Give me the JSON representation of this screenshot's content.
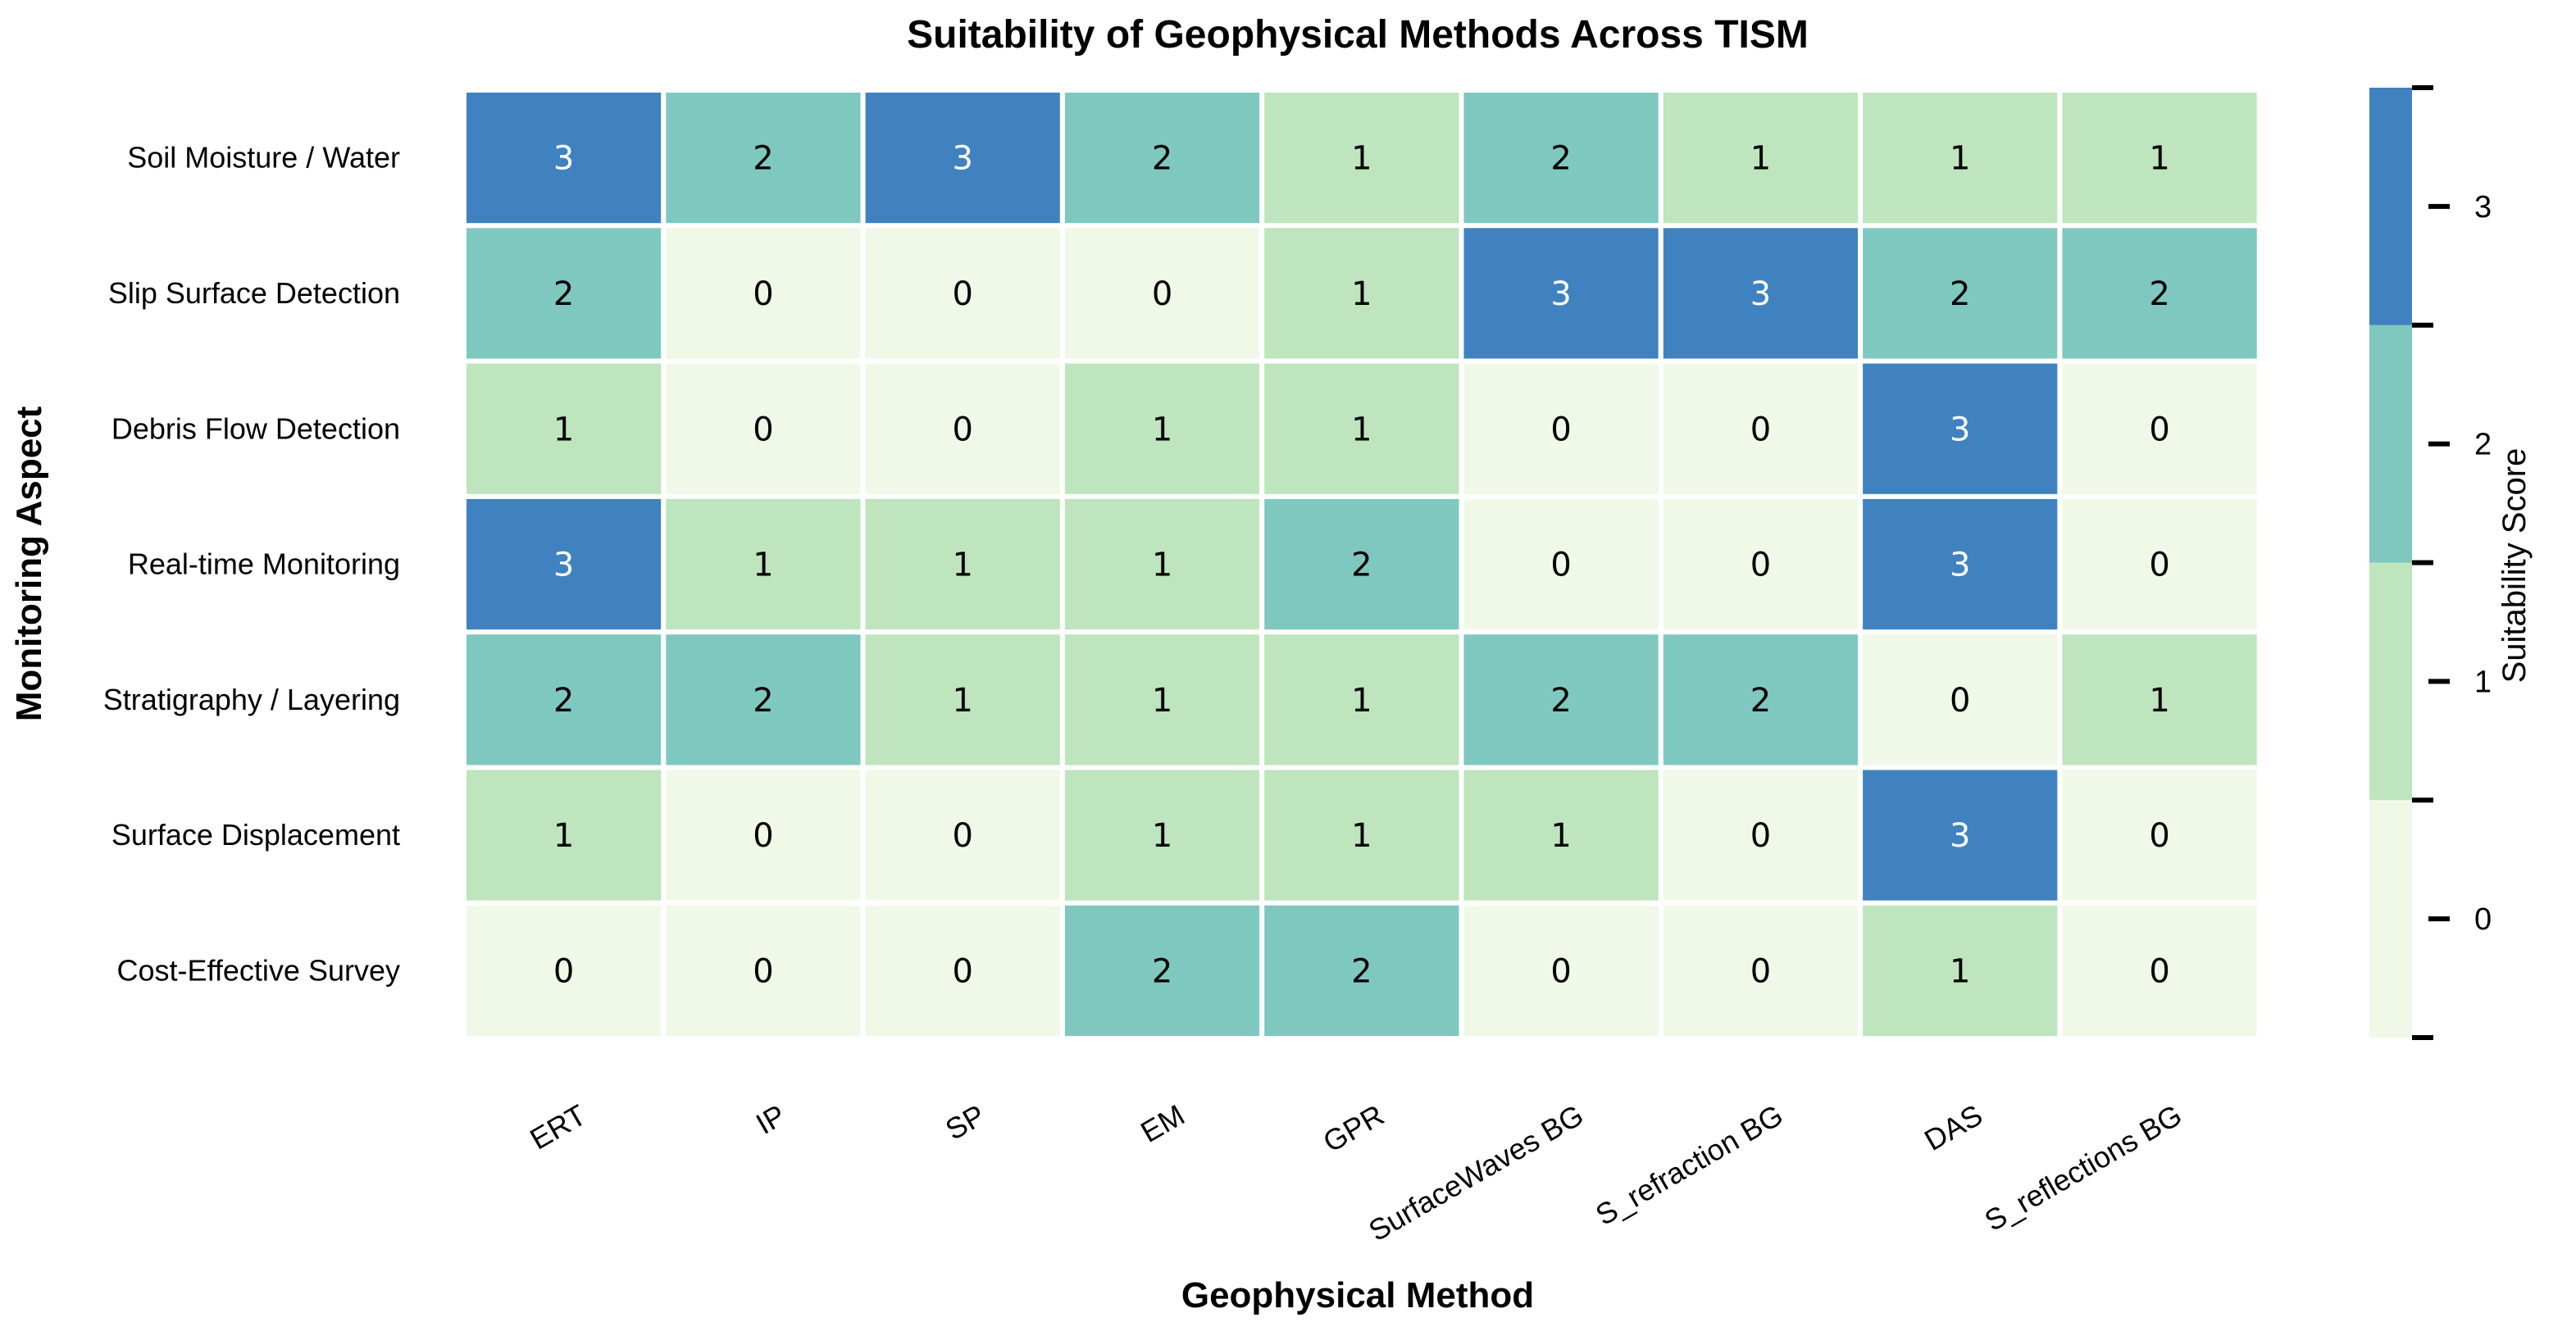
{
  "chart_data": {
    "type": "heatmap",
    "title": "Suitability of Geophysical Methods Across TISM",
    "xlabel": "Geophysical Method",
    "ylabel": "Monitoring Aspect",
    "x_categories": [
      "ERT",
      "IP",
      "SP",
      "EM",
      "GPR",
      "SurfaceWaves BG",
      "S_refraction BG",
      "DAS",
      "S_reflections BG"
    ],
    "y_categories": [
      "Soil Moisture / Water",
      "Slip Surface Detection",
      "Debris Flow Detection",
      "Real-time Monitoring",
      "Stratigraphy / Layering",
      "Surface Displacement",
      "Cost-Effective Survey"
    ],
    "values": [
      [
        3,
        2,
        3,
        2,
        1,
        2,
        1,
        1,
        1
      ],
      [
        2,
        0,
        0,
        0,
        1,
        3,
        3,
        2,
        2
      ],
      [
        1,
        0,
        0,
        1,
        1,
        0,
        0,
        3,
        0
      ],
      [
        3,
        1,
        1,
        1,
        2,
        0,
        0,
        3,
        0
      ],
      [
        2,
        2,
        1,
        1,
        1,
        2,
        2,
        0,
        1
      ],
      [
        1,
        0,
        0,
        1,
        1,
        1,
        0,
        3,
        0
      ],
      [
        0,
        0,
        0,
        2,
        2,
        0,
        0,
        1,
        0
      ]
    ],
    "colorbar": {
      "label": "Suitability Score",
      "ticks": [
        0,
        1,
        2,
        3
      ],
      "range": [
        -0.5,
        3.5
      ],
      "colors": [
        "#f0f9e8",
        "#bee5be",
        "#7fc8c0",
        "#3f82bf"
      ]
    }
  }
}
